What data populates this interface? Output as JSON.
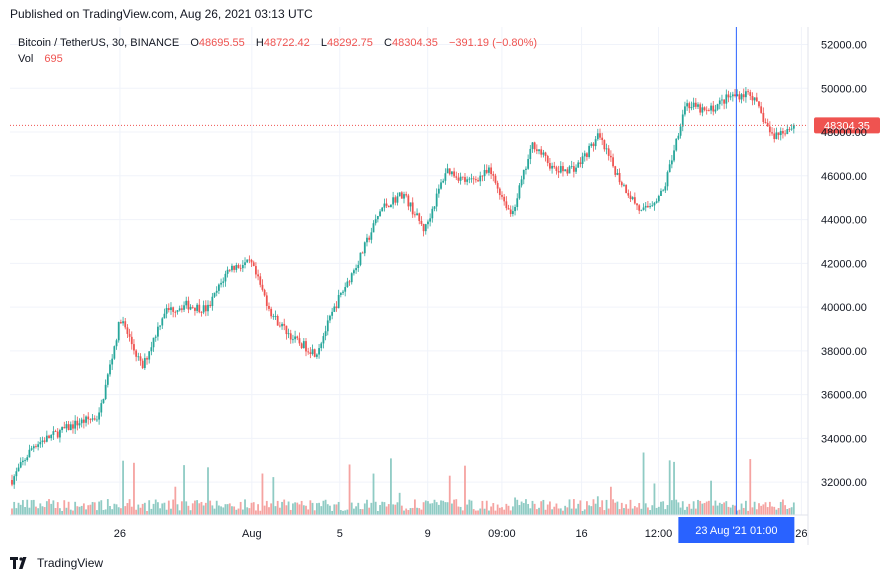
{
  "published_line": "Published on TradingView.com, Aug 26, 2021 03:13 UTC",
  "legend": {
    "symbol": "Bitcoin / TetherUS, 30, BINANCE",
    "o_key": "O",
    "o_val": "48695.55",
    "h_key": "H",
    "h_val": "48722.42",
    "l_key": "L",
    "l_val": "48292.75",
    "c_key": "C",
    "c_val": "48304.35",
    "change": "−391.19 (−0.80%)",
    "vol_key": "Vol",
    "vol_val": "695"
  },
  "footer": {
    "brand": "TradingView",
    "logo_icon": "tradingview-logo-icon"
  },
  "colors": {
    "up": "#26a69a",
    "down": "#ef5350",
    "up_volume": "#8fcbc4",
    "down_volume": "#f5a3a1",
    "grid": "#f0f3fa",
    "crosshair": "#2962ff",
    "price_line": "#ef5350"
  },
  "chart_data": {
    "type": "line",
    "title": "Bitcoin / TetherUS, 30, BINANCE",
    "xlabel": "",
    "ylabel": "",
    "grid": true,
    "legend": "top-left",
    "ylim": [
      30500,
      52800
    ],
    "y_ticks": [
      {
        "value": 32000,
        "label": "32000.00"
      },
      {
        "value": 34000,
        "label": "34000.00"
      },
      {
        "value": 36000,
        "label": "36000.00"
      },
      {
        "value": 38000,
        "label": "38000.00"
      },
      {
        "value": 40000,
        "label": "40000.00"
      },
      {
        "value": 42000,
        "label": "42000.00"
      },
      {
        "value": 44000,
        "label": "44000.00"
      },
      {
        "value": 46000,
        "label": "46000.00"
      },
      {
        "value": 48000,
        "label": "48000.00"
      },
      {
        "value": 50000,
        "label": "50000.00"
      },
      {
        "value": 52000,
        "label": "52000.00"
      }
    ],
    "x_ticks": [
      {
        "date": "2021-07-26",
        "label": "26"
      },
      {
        "date": "2021-08-01",
        "label": "Aug"
      },
      {
        "date": "2021-08-05",
        "label": "5"
      },
      {
        "date": "2021-08-09",
        "label": "9"
      },
      {
        "date": "2021-08-12 09:00",
        "label": "09:00"
      },
      {
        "date": "2021-08-16",
        "label": "16"
      },
      {
        "date": "2021-08-19 12:00",
        "label": "12:00"
      },
      {
        "date": "2021-08-26",
        "label": "26"
      }
    ],
    "last_price": {
      "value": 48304.35,
      "label": "48304.35"
    },
    "crosshair": {
      "date": "2021-08-23 01:00",
      "label": "23 Aug '21  01:00"
    },
    "series": [
      {
        "name": "Bitcoin / TetherUS",
        "x": [
          "2021-07-21",
          "2021-07-22",
          "2021-07-23",
          "2021-07-24",
          "2021-07-25",
          "2021-07-26",
          "2021-07-27",
          "2021-07-28",
          "2021-07-29",
          "2021-07-30",
          "2021-07-31",
          "2021-08-01",
          "2021-08-02",
          "2021-08-03",
          "2021-08-04",
          "2021-08-05",
          "2021-08-06",
          "2021-08-07",
          "2021-08-08",
          "2021-08-09",
          "2021-08-10",
          "2021-08-11",
          "2021-08-12",
          "2021-08-13",
          "2021-08-14",
          "2021-08-15",
          "2021-08-16",
          "2021-08-17",
          "2021-08-18",
          "2021-08-19",
          "2021-08-20",
          "2021-08-21",
          "2021-08-22",
          "2021-08-23",
          "2021-08-24",
          "2021-08-25",
          "2021-08-26"
        ],
        "close": [
          32100,
          33700,
          34200,
          34700,
          35000,
          39500,
          37200,
          39800,
          40100,
          39900,
          41800,
          42000,
          39600,
          38500,
          37900,
          40300,
          42200,
          44500,
          45200,
          43500,
          46300,
          45700,
          46200,
          44200,
          47500,
          46200,
          46400,
          47800,
          45800,
          44300,
          45300,
          49300,
          48900,
          49600,
          49800,
          47800,
          48304
        ]
      }
    ],
    "volume": {
      "name": "Vol",
      "last": 695
    }
  }
}
